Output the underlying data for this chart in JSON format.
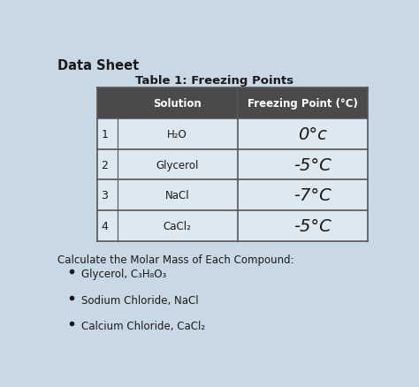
{
  "title_main": "Data Sheet",
  "table_title": "Table 1: Freezing Points",
  "col_headers": [
    "Solution",
    "Freezing Point (°C)"
  ],
  "row_nums": [
    "1",
    "2",
    "3",
    "4"
  ],
  "solutions": [
    "H₂O",
    "Glycerol",
    "NaCl",
    "CaCl₂"
  ],
  "freezing_points": [
    "0°c",
    "-5°C",
    "-7°C",
    "-5°C"
  ],
  "calc_header": "Calculate the Molar Mass of Each Compound:",
  "bullet_items": [
    "Glycerol, C₃H₈O₃",
    "Sodium Chloride, NaCl",
    "Calcium Chloride, CaCl₂"
  ],
  "bg_color": "#c9d8e5",
  "table_cell_bg": "#dde8f0",
  "header_bg": "#4a4a4a",
  "header_text": "#ffffff",
  "line_color": "#555555",
  "text_color": "#1a1a1a",
  "title_fontsize": 10.5,
  "table_title_fontsize": 9.5,
  "body_fontsize": 8.5,
  "header_fontsize": 8.5,
  "handwrite_fontsize": 14
}
